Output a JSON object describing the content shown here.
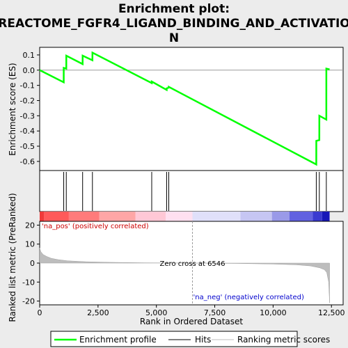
{
  "chart_data": {
    "type": "line",
    "title_line1": "Enrichment plot:",
    "title_line2": "REACTOME_FGFR4_LIGAND_BINDING_AND_ACTIVATIO",
    "title_line3": "N",
    "top_panel": {
      "ylabel": "Enrichment score (ES)",
      "ylim": [
        -0.66,
        0.15
      ],
      "yticks": [
        0.1,
        0.0,
        -0.1,
        -0.2,
        -0.3,
        -0.4,
        -0.5,
        -0.6
      ],
      "ytick_labels": [
        "0.1",
        "0.0",
        "-0.1",
        "-0.2",
        "-0.3",
        "-0.4",
        "-0.5",
        "-0.6"
      ],
      "series_name": "Enrichment profile",
      "es_curve": {
        "x": [
          0,
          1030,
          1031,
          1140,
          1141,
          1840,
          1841,
          2260,
          2261,
          4800,
          4801,
          5440,
          5441,
          5530,
          5531,
          11850,
          11851,
          11980,
          11981,
          12280,
          12281,
          12420
        ],
        "y": [
          0.0,
          -0.08,
          0.015,
          0.01,
          0.095,
          0.04,
          0.095,
          0.065,
          0.115,
          -0.085,
          -0.075,
          -0.13,
          -0.12,
          -0.115,
          -0.11,
          -0.62,
          -0.465,
          -0.46,
          -0.3,
          -0.325,
          0.01,
          0.005
        ]
      }
    },
    "hits": [
      1030,
      1140,
      1840,
      2260,
      4800,
      5440,
      5530,
      11850,
      11980,
      12280
    ],
    "bottom_panel": {
      "ylabel": "Ranked list metric (PreRanked)",
      "xlabel": "Rank in Ordered Dataset",
      "ylim": [
        -22,
        22
      ],
      "yticks": [
        20,
        10,
        0,
        -10,
        -20
      ],
      "ytick_labels": [
        "20",
        "10",
        "0",
        "-10",
        "-20"
      ],
      "series_name": "Ranking metric scores",
      "zero_cross": 6546,
      "zero_cross_label": "Zero cross at 6546",
      "pos_label": "'na_pos' (positively correlated)",
      "neg_label": "'na_neg' (negatively correlated)",
      "metric_profile": {
        "x": [
          0,
          50,
          150,
          300,
          500,
          800,
          1200,
          2000,
          3000,
          4500,
          6546,
          8500,
          10000,
          11000,
          11600,
          12000,
          12200,
          12300,
          12380,
          12420
        ],
        "y": [
          8.0,
          6.0,
          4.5,
          3.5,
          2.5,
          1.8,
          1.2,
          0.7,
          0.4,
          0.15,
          0.0,
          -0.2,
          -0.5,
          -0.9,
          -1.5,
          -2.5,
          -3.5,
          -5.0,
          -10.0,
          -21.0
        ]
      }
    },
    "xlim": [
      0,
      13000
    ],
    "xticks": [
      0,
      2500,
      5000,
      7500,
      10000,
      12500
    ],
    "xtick_labels": [
      "0",
      "2,500",
      "5,000",
      "7,500",
      "10,000",
      "12,500"
    ],
    "n_ranks": 12420,
    "colors": {
      "curve": "#00ff00",
      "hits": "#000000",
      "metric": "#bdbdbd",
      "pos_text": "#cc0000",
      "neg_text": "#0000cc"
    },
    "heat_segments": [
      {
        "x0": 0,
        "x1": 180,
        "color": "#f03a3a"
      },
      {
        "x0": 180,
        "x1": 1250,
        "color": "#ff5a5a"
      },
      {
        "x0": 1250,
        "x1": 2550,
        "color": "#ff7b7b"
      },
      {
        "x0": 2550,
        "x1": 4100,
        "color": "#ffa6a6"
      },
      {
        "x0": 4100,
        "x1": 5400,
        "color": "#ffc8d6"
      },
      {
        "x0": 5400,
        "x1": 6546,
        "color": "#ffe0f0"
      },
      {
        "x0": 6546,
        "x1": 8600,
        "color": "#e0e0fa"
      },
      {
        "x0": 8600,
        "x1": 9950,
        "color": "#c6c6f3"
      },
      {
        "x0": 9950,
        "x1": 10700,
        "color": "#9a9ae8"
      },
      {
        "x0": 10700,
        "x1": 11700,
        "color": "#6262e0"
      },
      {
        "x0": 11700,
        "x1": 12100,
        "color": "#3a3ad0"
      },
      {
        "x0": 12100,
        "x1": 12420,
        "color": "#1818b8"
      }
    ],
    "legend": [
      "Enrichment profile",
      "Hits",
      "Ranking metric scores"
    ],
    "legend_position": "bottom"
  }
}
